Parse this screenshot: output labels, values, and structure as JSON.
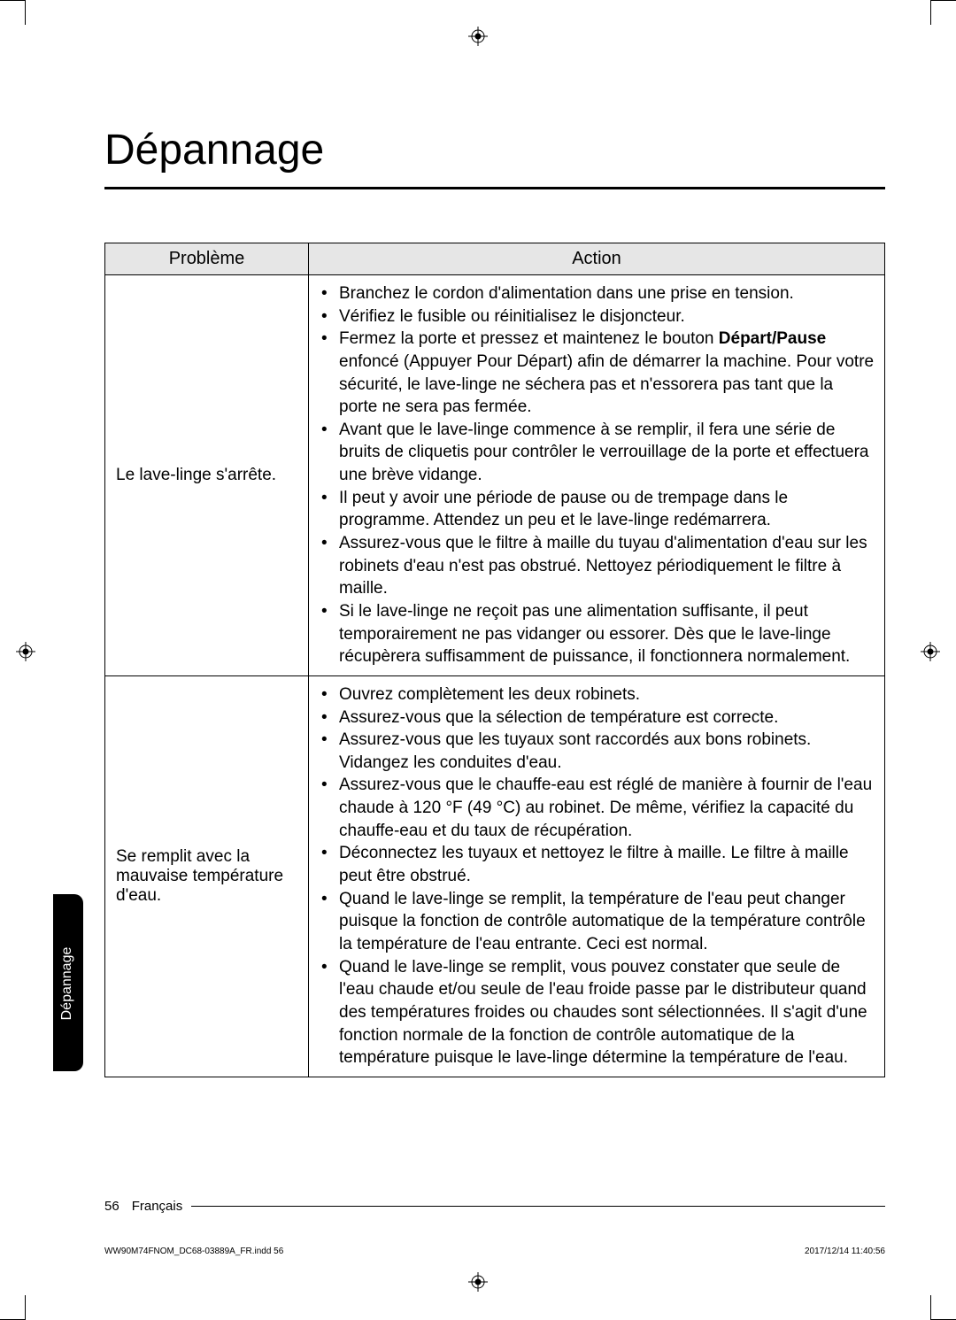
{
  "title": "Dépannage",
  "side_tab": "Dépannage",
  "table": {
    "headers": {
      "problem": "Problème",
      "action": "Action"
    },
    "rows": [
      {
        "problem": "Le lave-linge s'arrête.",
        "actions": [
          {
            "text": "Branchez le cordon d'alimentation dans une prise en tension."
          },
          {
            "text": "Vérifiez le fusible ou réinitialisez le disjoncteur."
          },
          {
            "prefix": "Fermez la porte et pressez et maintenez le bouton ",
            "bold": "Départ/Pause",
            "suffix": " enfoncé (Appuyer Pour Départ) afin de démarrer la machine. Pour votre sécurité, le lave-linge ne séchera pas et n'essorera pas tant que la porte ne sera pas fermée."
          },
          {
            "text": "Avant que le lave-linge commence à se remplir, il fera une série de bruits de cliquetis pour contrôler le verrouillage de la porte et effectuera une brève vidange."
          },
          {
            "text": "Il peut y avoir une période de pause ou de trempage dans le programme. Attendez un peu et le lave-linge redémarrera."
          },
          {
            "text": "Assurez-vous que le filtre à maille du tuyau d'alimentation d'eau sur les robinets d'eau n'est pas obstrué. Nettoyez périodiquement le filtre à maille."
          },
          {
            "text": "Si le lave-linge ne reçoit pas une alimentation suffisante, il peut temporairement ne pas vidanger ou essorer. Dès que le lave-linge récupèrera suffisamment de puissance, il fonctionnera normalement."
          }
        ]
      },
      {
        "problem": "Se remplit avec la mauvaise température d'eau.",
        "actions": [
          {
            "text": "Ouvrez complètement les deux robinets."
          },
          {
            "text": "Assurez-vous que la sélection de température est correcte."
          },
          {
            "text": "Assurez-vous que les tuyaux sont raccordés aux bons robinets. Vidangez les conduites d'eau."
          },
          {
            "text": "Assurez-vous que le chauffe-eau est réglé de manière à fournir de l'eau chaude à 120 °F (49 °C) au robinet. De même, vérifiez la capacité du chauffe-eau et du taux de récupération."
          },
          {
            "text": "Déconnectez les tuyaux et nettoyez le filtre à maille. Le filtre à maille peut être obstrué."
          },
          {
            "text": "Quand le lave-linge se remplit, la température de l'eau peut changer puisque la fonction de contrôle automatique de la température contrôle la température de l'eau entrante. Ceci est normal."
          },
          {
            "text": "Quand le lave-linge se remplit, vous pouvez constater que seule de l'eau chaude et/ou seule de l'eau froide passe par le distributeur quand des températures froides ou chaudes sont sélectionnées. Il s'agit d'une fonction normale de la fonction de contrôle automatique de la température puisque le lave-linge détermine la température de l'eau."
          }
        ]
      }
    ]
  },
  "footer": {
    "page_num": "56",
    "lang": "Français",
    "file": "WW90M74FNOM_DC68-03889A_FR.indd   56",
    "timestamp": "2017/12/14   11:40:56"
  }
}
